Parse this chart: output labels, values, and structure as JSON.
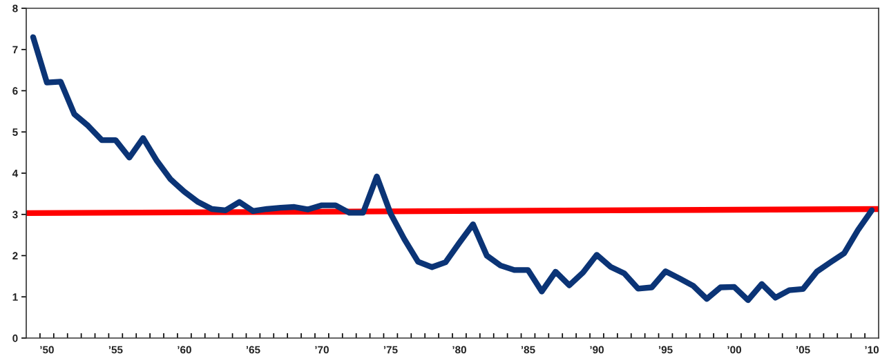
{
  "chart_data": {
    "type": "line",
    "grid": false,
    "line_style": "solid",
    "marker": "none",
    "xlim": [
      1948.5,
      2010.5
    ],
    "ylim": [
      0,
      8
    ],
    "yticks": [
      0,
      1,
      2,
      3,
      4,
      5,
      6,
      7,
      8
    ],
    "xticks": [
      {
        "value": 1950,
        "label": "’50"
      },
      {
        "value": 1955,
        "label": "’55"
      },
      {
        "value": 1960,
        "label": "’60"
      },
      {
        "value": 1965,
        "label": "’65"
      },
      {
        "value": 1970,
        "label": "’70"
      },
      {
        "value": 1975,
        "label": "’75"
      },
      {
        "value": 1980,
        "label": "’80"
      },
      {
        "value": 1985,
        "label": "’85"
      },
      {
        "value": 1990,
        "label": "’90"
      },
      {
        "value": 1995,
        "label": "’95"
      },
      {
        "value": 2000,
        "label": "’00"
      },
      {
        "value": 2005,
        "label": "’05"
      },
      {
        "value": 2010,
        "label": "’10"
      },
      {
        "value": 1949.5,
        "label": null
      },
      {
        "value": 1950.5,
        "label": null
      },
      {
        "value": 1951.5,
        "label": null
      },
      {
        "value": 1952.5,
        "label": null
      },
      {
        "value": 1953.5,
        "label": null
      },
      {
        "value": 1954.5,
        "label": null
      },
      {
        "value": 1955.5,
        "label": null
      },
      {
        "value": 1956.5,
        "label": null
      },
      {
        "value": 1957.5,
        "label": null
      },
      {
        "value": 1958.5,
        "label": null
      },
      {
        "value": 1959.5,
        "label": null
      },
      {
        "value": 1960.5,
        "label": null
      },
      {
        "value": 1961.5,
        "label": null
      },
      {
        "value": 1962.5,
        "label": null
      },
      {
        "value": 1963.5,
        "label": null
      },
      {
        "value": 1964.5,
        "label": null
      },
      {
        "value": 1965.5,
        "label": null
      },
      {
        "value": 1966.5,
        "label": null
      },
      {
        "value": 1967.5,
        "label": null
      },
      {
        "value": 1968.5,
        "label": null
      },
      {
        "value": 1969.5,
        "label": null
      },
      {
        "value": 1970.5,
        "label": null
      },
      {
        "value": 1971.5,
        "label": null
      },
      {
        "value": 1972.5,
        "label": null
      },
      {
        "value": 1973.5,
        "label": null
      },
      {
        "value": 1974.5,
        "label": null
      },
      {
        "value": 1975.5,
        "label": null
      },
      {
        "value": 1976.5,
        "label": null
      },
      {
        "value": 1977.5,
        "label": null
      },
      {
        "value": 1978.5,
        "label": null
      },
      {
        "value": 1979.5,
        "label": null
      },
      {
        "value": 1980.5,
        "label": null
      },
      {
        "value": 1981.5,
        "label": null
      },
      {
        "value": 1982.5,
        "label": null
      },
      {
        "value": 1983.5,
        "label": null
      },
      {
        "value": 1984.5,
        "label": null
      },
      {
        "value": 1985.5,
        "label": null
      },
      {
        "value": 1986.5,
        "label": null
      },
      {
        "value": 1987.5,
        "label": null
      },
      {
        "value": 1988.5,
        "label": null
      },
      {
        "value": 1989.5,
        "label": null
      },
      {
        "value": 1990.5,
        "label": null
      },
      {
        "value": 1991.5,
        "label": null
      },
      {
        "value": 1992.5,
        "label": null
      },
      {
        "value": 1993.5,
        "label": null
      },
      {
        "value": 1994.5,
        "label": null
      },
      {
        "value": 1995.5,
        "label": null
      },
      {
        "value": 1996.5,
        "label": null
      },
      {
        "value": 1997.5,
        "label": null
      },
      {
        "value": 1998.5,
        "label": null
      },
      {
        "value": 1999.5,
        "label": null
      },
      {
        "value": 2000.5,
        "label": null
      },
      {
        "value": 2001.5,
        "label": null
      },
      {
        "value": 2002.5,
        "label": null
      },
      {
        "value": 2003.5,
        "label": null
      },
      {
        "value": 2004.5,
        "label": null
      },
      {
        "value": 2005.5,
        "label": null
      },
      {
        "value": 2006.5,
        "label": null
      },
      {
        "value": 2007.5,
        "label": null
      },
      {
        "value": 2008.5,
        "label": null
      },
      {
        "value": 2009.5,
        "label": null
      }
    ],
    "x": [
      1949,
      1950,
      1951,
      1952,
      1953,
      1954,
      1955,
      1956,
      1957,
      1958,
      1959,
      1960,
      1961,
      1962,
      1963,
      1964,
      1965,
      1966,
      1967,
      1968,
      1969,
      1970,
      1971,
      1972,
      1973,
      1974,
      1975,
      1976,
      1977,
      1978,
      1979,
      1980,
      1981,
      1982,
      1983,
      1984,
      1985,
      1986,
      1987,
      1988,
      1989,
      1990,
      1991,
      1992,
      1993,
      1994,
      1995,
      1996,
      1997,
      1998,
      1999,
      2000,
      2001,
      2002,
      2003,
      2004,
      2005,
      2006,
      2007,
      2008,
      2009,
      2010
    ],
    "series": [
      {
        "color": "#ff0000",
        "x": [
          1948.5,
          2010.5
        ],
        "values": [
          3.03,
          3.13
        ]
      },
      {
        "color": "#0b3476",
        "values": [
          7.3,
          6.2,
          6.22,
          5.43,
          5.15,
          4.8,
          4.8,
          4.38,
          4.85,
          4.3,
          3.85,
          3.55,
          3.3,
          3.13,
          3.1,
          3.3,
          3.08,
          3.13,
          3.16,
          3.18,
          3.12,
          3.22,
          3.22,
          3.04,
          3.04,
          3.92,
          3.02,
          2.4,
          1.85,
          1.72,
          1.84,
          2.31,
          2.76,
          2.0,
          1.76,
          1.65,
          1.65,
          1.13,
          1.61,
          1.28,
          1.59,
          2.02,
          1.73,
          1.57,
          1.2,
          1.23,
          1.62,
          1.45,
          1.27,
          0.95,
          1.23,
          1.24,
          0.92,
          1.31,
          0.98,
          1.16,
          1.19,
          1.61,
          1.84,
          2.06,
          2.62,
          3.1
        ]
      }
    ]
  }
}
